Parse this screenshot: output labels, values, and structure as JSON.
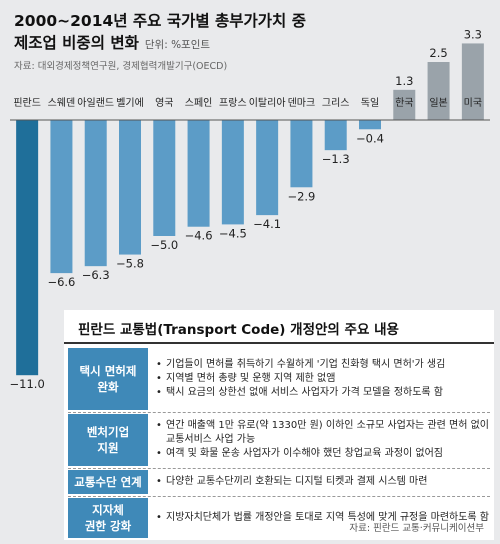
{
  "title_line1": "2000~2014년 주요 국가별 총부가가치 중",
  "title_line2": "제조업 비중의 변화",
  "unit": "단위: %포인트",
  "source": "자료: 대외경제정책연구원, 경제협력개발기구(OECD)",
  "chart_data": {
    "type": "bar",
    "categories": [
      "핀란드",
      "스웨덴",
      "아일랜드",
      "벨기에",
      "영국",
      "스페인",
      "프랑스",
      "이탈리아",
      "덴마크",
      "그리스",
      "독일",
      "한국",
      "일본",
      "미국"
    ],
    "values": [
      -11.0,
      -6.6,
      -6.3,
      -5.8,
      -5.0,
      -4.6,
      -4.5,
      -4.1,
      -2.9,
      -1.3,
      -0.4,
      1.3,
      2.5,
      3.3
    ],
    "value_labels": [
      "−11.0",
      "−6.6",
      "−6.3",
      "−5.8",
      "−5.0",
      "−4.6",
      "−4.5",
      "−4.1",
      "−2.9",
      "−1.3",
      "−0.4",
      "1.3",
      "2.5",
      "3.3"
    ],
    "colors": {
      "highlight": "#1f6f9a",
      "negative": "#5c9cc7",
      "positive": "#9aa3aa",
      "axis": "#555555"
    }
  },
  "panel": {
    "title": "핀란드 교통법(Transport Code) 개정안의 주요 내용",
    "rows": [
      {
        "label": [
          "택시 면허제",
          "완화"
        ],
        "items": [
          "기업들이 면허를 취득하기 수월하게 '기업 친화형 택시 면허'가 생김",
          "지역별 면허 총량 및 운행 지역 제한 없앰",
          "택시 요금의 상한선 없애 서비스 사업자가 가격 모델을 정하도록 함"
        ]
      },
      {
        "label": [
          "벤처기업",
          "지원"
        ],
        "items": [
          "연간 매출액 1만 유로(약 1330만 원) 이하인 소규모 사업자는 관련 면허 없이 교통서비스 사업 가능",
          "여객 및 화물 운송 사업자가 이수해야 했던 창업교육 과정이 없어짐"
        ]
      },
      {
        "label": [
          "교통수단 연계"
        ],
        "items": [
          "다양한 교통수단끼리 호환되는 디지털 티켓과 결제 시스템 마련"
        ]
      },
      {
        "label": [
          "지자체",
          "권한 강화"
        ],
        "items": [
          "지방자치단체가 법률 개정안을 토대로 지역 특성에 맞게 규정을 마련하도록 함"
        ]
      }
    ],
    "credit": "자료: 핀란드 교통·커뮤니케이션부"
  }
}
